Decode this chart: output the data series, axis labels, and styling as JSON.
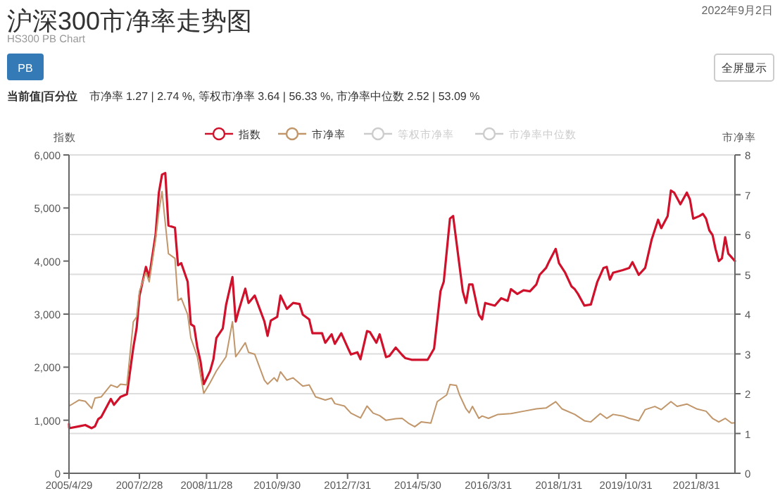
{
  "chart_data": {
    "type": "line",
    "title": "沪深300市净率走势图",
    "subtitle": "HS300 PB Chart",
    "ylabel": "指数",
    "y2label": "市净率",
    "annotations": [
      "2022年9月2日",
      "PB",
      "全屏显示",
      "当前值|百分位",
      "市净率 1.27 | 2.74 %, 等权市净率 3.64 | 56.33 %, 市净率中位数 2.52 | 53.09 %"
    ],
    "legend": "top",
    "grid": "y",
    "xlim": [
      "2005-04-29",
      "2022-09-02"
    ],
    "xticks": [
      {
        "value": "2005-04-29",
        "label": "2005/4/29"
      },
      {
        "value": "2007-02-28",
        "label": "2007/2/28"
      },
      {
        "value": "2008-11-28",
        "label": "2008/11/28"
      },
      {
        "value": "2010-09-30",
        "label": "2010/9/30"
      },
      {
        "value": "2012-07-31",
        "label": "2012/7/31"
      },
      {
        "value": "2014-05-30",
        "label": "2014/5/30"
      },
      {
        "value": "2016-03-31",
        "label": "2016/3/31"
      },
      {
        "value": "2018-01-31",
        "label": "2018/1/31"
      },
      {
        "value": "2019-10-31",
        "label": "2019/10/31"
      },
      {
        "value": "2021-08-31",
        "label": "2021/8/31"
      }
    ],
    "ylim": [
      0,
      6000
    ],
    "yticks": [
      0,
      {
        "value": 1000,
        "label": "1,000"
      },
      {
        "value": 2000,
        "label": "2,000"
      },
      {
        "value": 3000,
        "label": "3,000"
      },
      {
        "value": 4000,
        "label": "4,000"
      },
      {
        "value": 5000,
        "label": "5,000"
      },
      {
        "value": 6000,
        "label": "6,000"
      }
    ],
    "y2lim": [
      0,
      8
    ],
    "y2ticks": [
      0,
      1,
      2,
      3,
      4,
      5,
      6,
      7,
      8
    ],
    "series": [
      {
        "name": "指数",
        "color": "#d0112b",
        "x": [
          "2005-04-29",
          "2005-05",
          "2005-08",
          "2005-10",
          "2005-12",
          "2006-01",
          "2006-02",
          "2006-03",
          "2006-06",
          "2006-07",
          "2006-09",
          "2006-11",
          "2007-01",
          "2007-02",
          "2007-03",
          "2007-05",
          "2007-06",
          "2007-08",
          "2007-09",
          "2007-10",
          "2007-11",
          "2007-12",
          "2008-02",
          "2008-03",
          "2008-04",
          "2008-06",
          "2008-07",
          "2008-08",
          "2008-09",
          "2008-10",
          "2008-11",
          "2009-01",
          "2009-02",
          "2009-03",
          "2009-05",
          "2009-06",
          "2009-08",
          "2009-09",
          "2009-10",
          "2009-12",
          "2010-01",
          "2010-03",
          "2010-06",
          "2010-07",
          "2010-08",
          "2010-10",
          "2010-11",
          "2011-01",
          "2011-03",
          "2011-05",
          "2011-06",
          "2011-08",
          "2011-09",
          "2011-12",
          "2012-01",
          "2012-03",
          "2012-04",
          "2012-06",
          "2012-08",
          "2012-09",
          "2012-11",
          "2012-12",
          "2013-02",
          "2013-03",
          "2013-05",
          "2013-06",
          "2013-08",
          "2013-09",
          "2013-11",
          "2014-01",
          "2014-02",
          "2014-04",
          "2014-09",
          "2014-11",
          "2015-01",
          "2015-02",
          "2015-04",
          "2015-05",
          "2015-08",
          "2015-09",
          "2015-10",
          "2015-11",
          "2016-01",
          "2016-02",
          "2016-03",
          "2016-06",
          "2016-08",
          "2016-10",
          "2016-11",
          "2017-01",
          "2017-03",
          "2017-05",
          "2017-07",
          "2017-08",
          "2017-10",
          "2017-11",
          "2018-01",
          "2018-02",
          "2018-04",
          "2018-06",
          "2018-07",
          "2018-08",
          "2018-10",
          "2018-12",
          "2019-02",
          "2019-04",
          "2019-05",
          "2019-06",
          "2019-07",
          "2019-10",
          "2019-12",
          "2020-01",
          "2020-03",
          "2020-05",
          "2020-07",
          "2020-09",
          "2020-10",
          "2020-12",
          "2021-01",
          "2021-02",
          "2021-04",
          "2021-06",
          "2021-07",
          "2021-08",
          "2021-10",
          "2021-11",
          "2021-12",
          "2022-01",
          "2022-02",
          "2022-03",
          "2022-04",
          "2022-05",
          "2022-06",
          "2022-07",
          "2022-09-02"
        ],
        "values": [
          930,
          850,
          885,
          910,
          850,
          885,
          1020,
          1060,
          1400,
          1290,
          1440,
          1490,
          2370,
          2730,
          3350,
          3890,
          3700,
          4500,
          5290,
          5630,
          5660,
          4670,
          4630,
          3920,
          3960,
          3610,
          2810,
          2770,
          2370,
          2110,
          1680,
          1930,
          2150,
          2550,
          2730,
          3170,
          3700,
          2860,
          3080,
          3480,
          3210,
          3350,
          2860,
          2590,
          2880,
          2950,
          3350,
          3100,
          3210,
          3190,
          2990,
          2900,
          2640,
          2640,
          2460,
          2620,
          2440,
          2640,
          2370,
          2240,
          2280,
          2150,
          2680,
          2660,
          2460,
          2620,
          2190,
          2210,
          2370,
          2230,
          2170,
          2140,
          2140,
          2350,
          3430,
          3610,
          4800,
          4850,
          3430,
          3210,
          3560,
          3560,
          2990,
          2900,
          3210,
          3160,
          3300,
          3250,
          3470,
          3380,
          3450,
          3430,
          3560,
          3740,
          3870,
          4000,
          4230,
          3960,
          3780,
          3520,
          3470,
          3380,
          3160,
          3180,
          3610,
          3870,
          3890,
          3650,
          3780,
          3830,
          3870,
          3980,
          3740,
          3870,
          4400,
          4780,
          4620,
          4850,
          5330,
          5290,
          5070,
          5290,
          5160,
          4800,
          4850,
          4890,
          4800,
          4580,
          4490,
          4230,
          4000,
          4050,
          4450,
          4140,
          4000
        ]
      },
      {
        "name": "市净率",
        "color": "#c0966a",
        "axis": "y2",
        "x": [
          "2005-04-29",
          "2005-05",
          "2005-08",
          "2005-10",
          "2005-12",
          "2006-01",
          "2006-03",
          "2006-06",
          "2006-08",
          "2006-09",
          "2006-11",
          "2007-01",
          "2007-02",
          "2007-03",
          "2007-05",
          "2007-06",
          "2007-08",
          "2007-09",
          "2007-10",
          "2007-12",
          "2008-02",
          "2008-03",
          "2008-04",
          "2008-06",
          "2008-07",
          "2008-09",
          "2008-11",
          "2009-01",
          "2009-03",
          "2009-06",
          "2009-08",
          "2009-09",
          "2009-10",
          "2009-12",
          "2010-01",
          "2010-03",
          "2010-06",
          "2010-07",
          "2010-09",
          "2010-10",
          "2010-11",
          "2011-01",
          "2011-03",
          "2011-06",
          "2011-08",
          "2011-10",
          "2012-01",
          "2012-03",
          "2012-04",
          "2012-07",
          "2012-09",
          "2012-12",
          "2013-02",
          "2013-04",
          "2013-06",
          "2013-08",
          "2013-11",
          "2014-01",
          "2014-03",
          "2014-05",
          "2014-07",
          "2014-10",
          "2014-12",
          "2015-03",
          "2015-04",
          "2015-06",
          "2015-07",
          "2015-09",
          "2015-10",
          "2015-11",
          "2016-01",
          "2016-02",
          "2016-04",
          "2016-07",
          "2016-11",
          "2017-03",
          "2017-07",
          "2017-10",
          "2018-01",
          "2018-03",
          "2018-07",
          "2018-10",
          "2018-12",
          "2019-03",
          "2019-05",
          "2019-07",
          "2019-10",
          "2019-12",
          "2020-03",
          "2020-05",
          "2020-08",
          "2020-10",
          "2021-01",
          "2021-03",
          "2021-06",
          "2021-09",
          "2021-12",
          "2022-02",
          "2022-04",
          "2022-06",
          "2022-08",
          "2022-09-02"
        ],
        "values": [
          1.89,
          1.69,
          1.84,
          1.81,
          1.63,
          1.89,
          1.92,
          2.22,
          2.16,
          2.24,
          2.22,
          3.81,
          3.93,
          4.58,
          5.05,
          4.81,
          5.88,
          6.58,
          7.08,
          5.52,
          5.4,
          4.34,
          4.4,
          3.99,
          3.4,
          2.93,
          2.01,
          2.28,
          2.57,
          2.93,
          3.81,
          2.93,
          3.04,
          3.28,
          3.04,
          2.99,
          2.34,
          2.24,
          2.4,
          2.31,
          2.55,
          2.34,
          2.4,
          2.19,
          2.22,
          1.92,
          1.84,
          1.89,
          1.75,
          1.69,
          1.51,
          1.39,
          1.69,
          1.51,
          1.45,
          1.33,
          1.37,
          1.38,
          1.26,
          1.17,
          1.29,
          1.26,
          1.8,
          1.97,
          2.23,
          2.21,
          1.97,
          1.62,
          1.52,
          1.68,
          1.38,
          1.44,
          1.38,
          1.48,
          1.5,
          1.56,
          1.62,
          1.64,
          1.8,
          1.62,
          1.48,
          1.32,
          1.29,
          1.5,
          1.38,
          1.48,
          1.44,
          1.38,
          1.32,
          1.6,
          1.68,
          1.6,
          1.8,
          1.68,
          1.74,
          1.62,
          1.56,
          1.38,
          1.29,
          1.38,
          1.26,
          1.27
        ]
      },
      {
        "name": "等权市净率",
        "color": "#cccccc",
        "axis": "y2"
      },
      {
        "name": "市净率中位数",
        "color": "#cccccc",
        "axis": "y2"
      }
    ]
  }
}
